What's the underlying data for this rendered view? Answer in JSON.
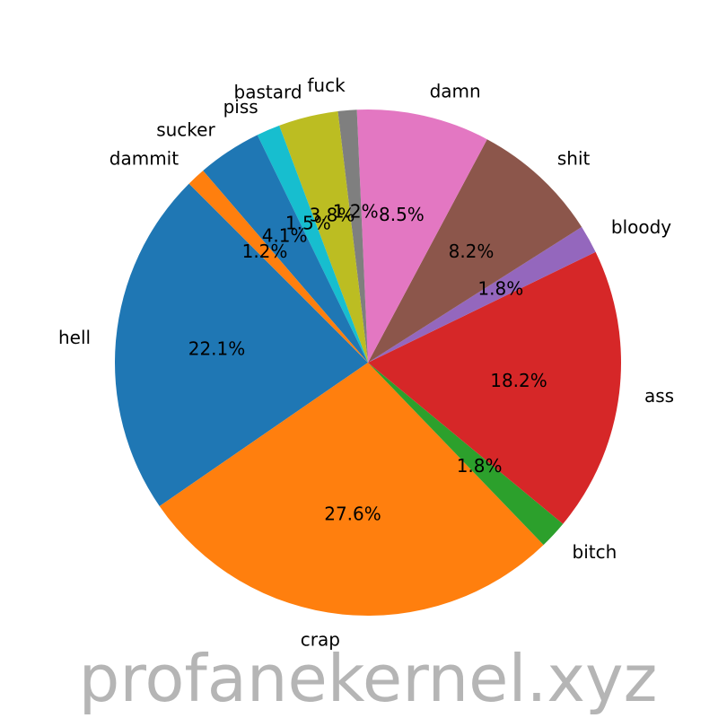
{
  "chart_data": {
    "type": "pie",
    "title": "",
    "start_angle_deg": 135,
    "direction": "counterclockwise",
    "slices": [
      {
        "label": "hell",
        "value": 22.1,
        "pct_label": "22.1%",
        "color": "#1f77b4"
      },
      {
        "label": "crap",
        "value": 27.6,
        "pct_label": "27.6%",
        "color": "#ff7f0e"
      },
      {
        "label": "bitch",
        "value": 1.8,
        "pct_label": "1.8%",
        "color": "#2ca02c"
      },
      {
        "label": "ass",
        "value": 18.2,
        "pct_label": "18.2%",
        "color": "#d62728"
      },
      {
        "label": "bloody",
        "value": 1.8,
        "pct_label": "1.8%",
        "color": "#9467bd"
      },
      {
        "label": "shit",
        "value": 8.2,
        "pct_label": "8.2%",
        "color": "#8c564b"
      },
      {
        "label": "damn",
        "value": 8.5,
        "pct_label": "8.5%",
        "color": "#e377c2"
      },
      {
        "label": "fuck",
        "value": 1.2,
        "pct_label": "1.2%",
        "color": "#7f7f7f"
      },
      {
        "label": "bastard",
        "value": 3.8,
        "pct_label": "3.8%",
        "color": "#bcbd22"
      },
      {
        "label": "piss",
        "value": 1.5,
        "pct_label": "1.5%",
        "color": "#17becf"
      },
      {
        "label": "sucker",
        "value": 4.1,
        "pct_label": "4.1%",
        "color": "#1f77b4"
      },
      {
        "label": "dammit",
        "value": 1.2,
        "pct_label": "1.2%",
        "color": "#ff7f0e"
      }
    ]
  },
  "watermark": "profanekernel.xyz"
}
